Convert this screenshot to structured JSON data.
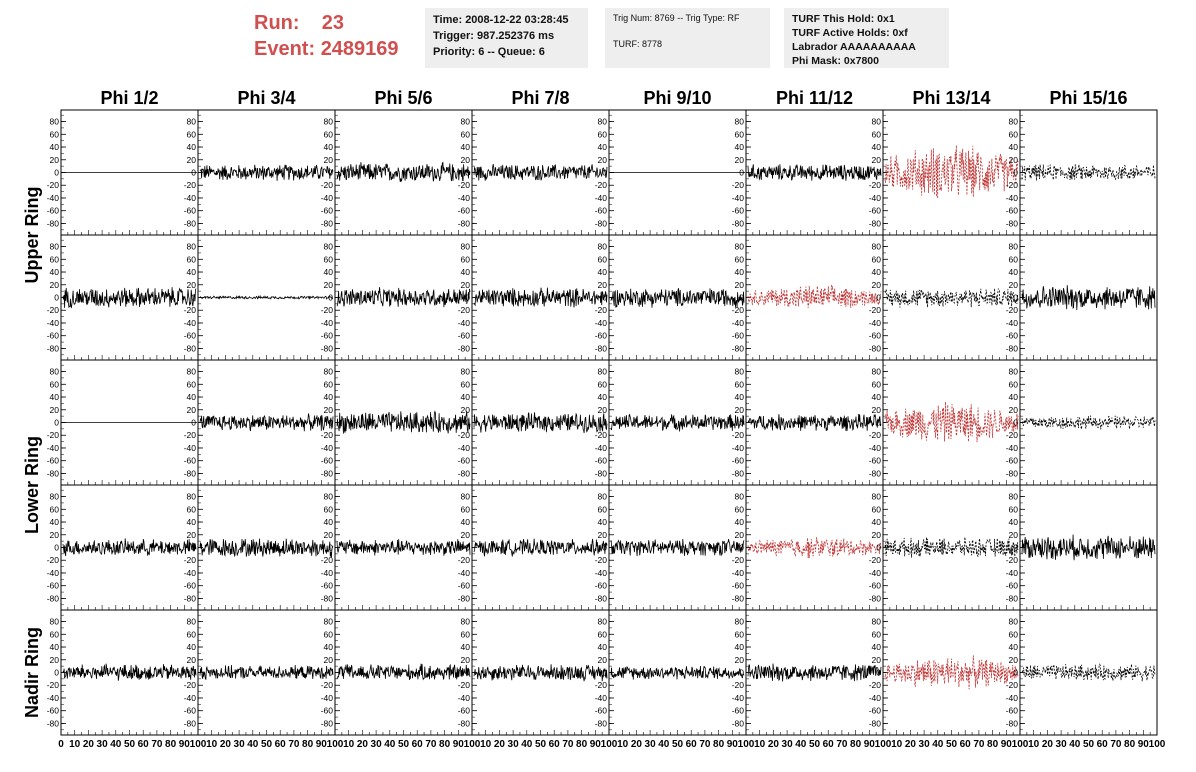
{
  "header": {
    "run_label": "Run:",
    "run_value": "23",
    "event_label": "Event:",
    "event_value": "2489169",
    "accent": "#d05050"
  },
  "info": {
    "time": "Time: 2008-12-22 03:28:45",
    "trigger": "Trigger: 987.252376 ms",
    "priority": "Priority: 6 -- Queue: 6",
    "trig_num": "Trig Num: 8769 -- Trig Type: RF",
    "turf": "TURF: 8778",
    "turf_hold": "TURF This Hold: 0x1",
    "turf_active": "TURF Active Holds: 0xf",
    "labrador": "Labrador AAAAAAAAAA",
    "phi_mask": "Phi Mask: 0x7800"
  },
  "chart_data": {
    "type": "line",
    "columns": [
      "Phi 1/2",
      "Phi 3/4",
      "Phi 5/6",
      "Phi 7/8",
      "Phi 9/10",
      "Phi 11/12",
      "Phi 13/14",
      "Phi 15/16"
    ],
    "ring_labels": [
      "Upper Ring",
      "Lower Ring",
      "Nadir Ring"
    ],
    "rows": 5,
    "y_ticks": [
      80,
      60,
      40,
      20,
      0,
      -20,
      -40,
      -60,
      -80
    ],
    "ylim": [
      -95,
      95
    ],
    "x_ticks": [
      "0",
      "10",
      "20",
      "30",
      "40",
      "50",
      "60",
      "70",
      "80",
      "90",
      "100"
    ],
    "xlim": [
      0,
      100
    ],
    "colors": {
      "normal": "#000000",
      "highlight": "#c03030"
    },
    "panels": [
      [
        {
          "style": "flat"
        },
        {
          "style": "solid",
          "amp": 12
        },
        {
          "style": "solid",
          "amp": 14
        },
        {
          "style": "solid",
          "amp": 12
        },
        {
          "style": "flat"
        },
        {
          "style": "solid",
          "amp": 12
        },
        {
          "style": "red-dash",
          "amp": 40
        },
        {
          "style": "black-dash",
          "amp": 12
        }
      ],
      [
        {
          "style": "solid",
          "amp": 15
        },
        {
          "style": "solid",
          "amp": 2
        },
        {
          "style": "solid",
          "amp": 14
        },
        {
          "style": "solid",
          "amp": 14
        },
        {
          "style": "solid",
          "amp": 14
        },
        {
          "style": "red-dash",
          "amp": 18
        },
        {
          "style": "black-dash",
          "amp": 14
        },
        {
          "style": "solid",
          "amp": 18
        }
      ],
      [
        {
          "style": "flat"
        },
        {
          "style": "solid",
          "amp": 12
        },
        {
          "style": "solid",
          "amp": 16
        },
        {
          "style": "solid",
          "amp": 14
        },
        {
          "style": "solid",
          "amp": 12
        },
        {
          "style": "solid",
          "amp": 12
        },
        {
          "style": "red-dash",
          "amp": 30
        },
        {
          "style": "black-dash",
          "amp": 10
        }
      ],
      [
        {
          "style": "solid",
          "amp": 12
        },
        {
          "style": "solid",
          "amp": 14
        },
        {
          "style": "solid",
          "amp": 12
        },
        {
          "style": "solid",
          "amp": 12
        },
        {
          "style": "solid",
          "amp": 12
        },
        {
          "style": "red-dash",
          "amp": 16
        },
        {
          "style": "black-dash",
          "amp": 14
        },
        {
          "style": "solid",
          "amp": 18
        }
      ],
      [
        {
          "style": "solid",
          "amp": 12
        },
        {
          "style": "solid",
          "amp": 10
        },
        {
          "style": "solid",
          "amp": 12
        },
        {
          "style": "solid",
          "amp": 12
        },
        {
          "style": "solid",
          "amp": 10
        },
        {
          "style": "solid",
          "amp": 13
        },
        {
          "style": "red-dash",
          "amp": 24
        },
        {
          "style": "black-dash",
          "amp": 12
        }
      ]
    ]
  }
}
